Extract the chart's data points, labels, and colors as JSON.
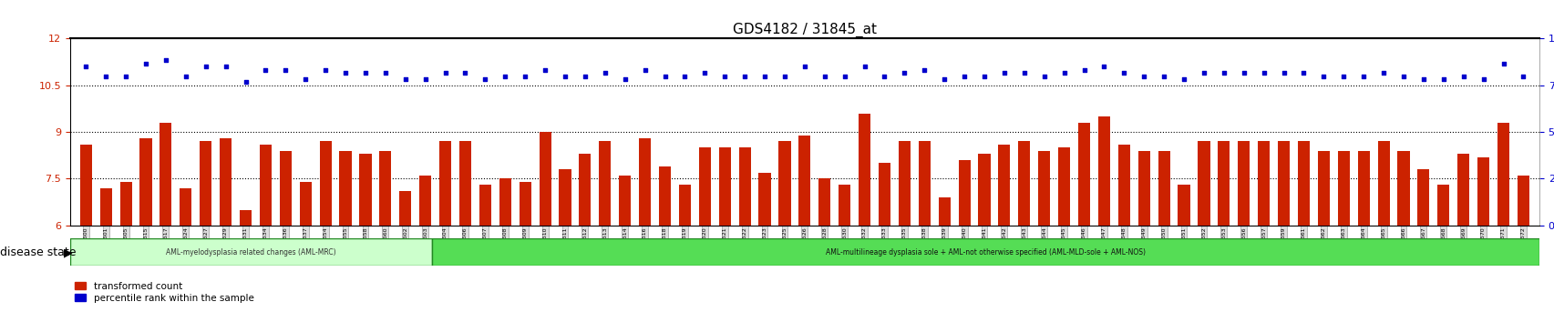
{
  "title": "GDS4182 / 31845_at",
  "samples": [
    "GSM531600",
    "GSM531601",
    "GSM531605",
    "GSM531615",
    "GSM531617",
    "GSM531624",
    "GSM531627",
    "GSM531629",
    "GSM531631",
    "GSM531634",
    "GSM531636",
    "GSM531637",
    "GSM531654",
    "GSM531655",
    "GSM531658",
    "GSM531660",
    "GSM531602",
    "GSM531603",
    "GSM531604",
    "GSM531606",
    "GSM531607",
    "GSM531608",
    "GSM531609",
    "GSM531610",
    "GSM531611",
    "GSM531612",
    "GSM531613",
    "GSM531614",
    "GSM531616",
    "GSM531618",
    "GSM531619",
    "GSM531620",
    "GSM531621",
    "GSM531622",
    "GSM531623",
    "GSM531625",
    "GSM531626",
    "GSM531628",
    "GSM531630",
    "GSM531632",
    "GSM531633",
    "GSM531635",
    "GSM531638",
    "GSM531639",
    "GSM531640",
    "GSM531641",
    "GSM531642",
    "GSM531643",
    "GSM531644",
    "GSM531645",
    "GSM531646",
    "GSM531647",
    "GSM531648",
    "GSM531649",
    "GSM531650",
    "GSM531651",
    "GSM531652",
    "GSM531653",
    "GSM531656",
    "GSM531657",
    "GSM531659",
    "GSM531661",
    "GSM531662",
    "GSM531663",
    "GSM531664",
    "GSM531665",
    "GSM531666",
    "GSM531667",
    "GSM531668",
    "GSM531669",
    "GSM531670",
    "GSM531671",
    "GSM531672"
  ],
  "bar_values": [
    8.6,
    7.2,
    7.4,
    8.8,
    9.3,
    7.2,
    8.7,
    8.8,
    6.5,
    8.6,
    8.4,
    7.4,
    8.7,
    8.4,
    8.3,
    8.4,
    7.1,
    7.6,
    8.7,
    8.7,
    7.3,
    7.5,
    7.4,
    9.0,
    7.8,
    8.3,
    8.7,
    7.6,
    8.8,
    7.9,
    7.3,
    8.5,
    8.5,
    8.5,
    7.7,
    8.7,
    8.9,
    7.5,
    7.3,
    9.6,
    8.0,
    8.7,
    8.7,
    6.9,
    8.1,
    8.3,
    8.6,
    8.7,
    8.4,
    8.5,
    9.3,
    9.5,
    8.6,
    8.4,
    8.4,
    7.3,
    8.7,
    8.7,
    8.7,
    8.7,
    8.7,
    8.7,
    8.4,
    8.4,
    8.4,
    8.7,
    8.4,
    7.8,
    7.3,
    8.3,
    8.2,
    9.3,
    7.6
  ],
  "dot_values": [
    11.1,
    10.8,
    10.8,
    11.2,
    11.3,
    10.8,
    11.1,
    11.1,
    10.6,
    11.0,
    11.0,
    10.7,
    11.0,
    10.9,
    10.9,
    10.9,
    10.7,
    10.7,
    10.9,
    10.9,
    10.7,
    10.8,
    10.8,
    11.0,
    10.8,
    10.8,
    10.9,
    10.7,
    11.0,
    10.8,
    10.8,
    10.9,
    10.8,
    10.8,
    10.8,
    10.8,
    11.1,
    10.8,
    10.8,
    11.1,
    10.8,
    10.9,
    11.0,
    10.7,
    10.8,
    10.8,
    10.9,
    10.9,
    10.8,
    10.9,
    11.0,
    11.1,
    10.9,
    10.8,
    10.8,
    10.7,
    10.9,
    10.9,
    10.9,
    10.9,
    10.9,
    10.9,
    10.8,
    10.8,
    10.8,
    10.9,
    10.8,
    10.7,
    10.7,
    10.8,
    10.7,
    11.2,
    10.8
  ],
  "group1_count": 18,
  "group1_label": "AML-myelodysplasia related changes (AML-MRC)",
  "group2_label": "AML-multilineage dysplasia sole + AML-not otherwise specified (AML-MLD-sole + AML-NOS)",
  "ylim": [
    6,
    12
  ],
  "yticks": [
    6,
    7.5,
    9,
    10.5,
    12
  ],
  "ytick_labels": [
    "6",
    "7.5",
    "9",
    "10.5",
    "12"
  ],
  "dotted_lines": [
    7.5,
    9,
    10.5
  ],
  "y2lim": [
    0,
    100
  ],
  "y2ticks": [
    0,
    25,
    50,
    75,
    100
  ],
  "bar_color": "#cc2200",
  "dot_color": "#0000cc",
  "group1_color": "#ccffcc",
  "group2_color": "#44cc44",
  "background_color": "#ffffff",
  "tick_area_color": "#dddddd",
  "disease_state_label": "disease state",
  "legend_bar_label": "transformed count",
  "legend_dot_label": "percentile rank within the sample"
}
